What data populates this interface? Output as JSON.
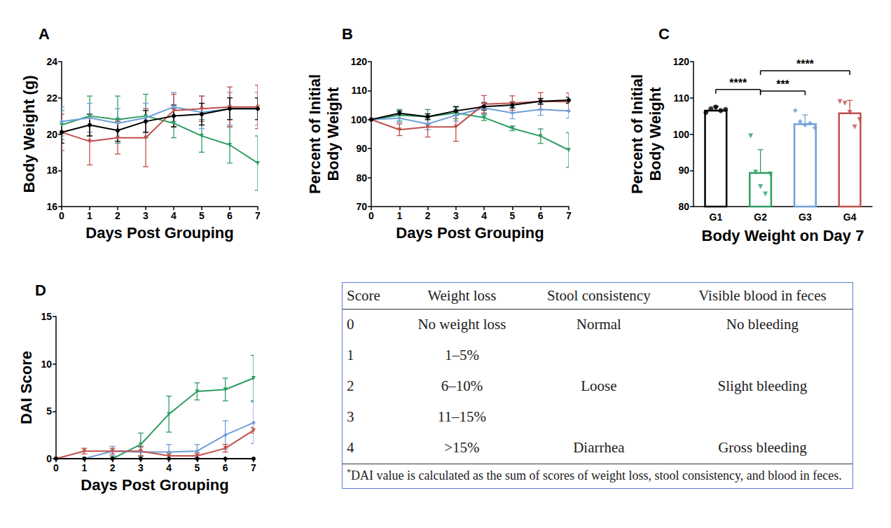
{
  "chart_data": [
    {
      "type": "line",
      "title": "A",
      "xlabel": "Days Post Grouping",
      "ylabel": "Body Weight (g)",
      "x": [
        0,
        1,
        2,
        3,
        4,
        5,
        6,
        7
      ],
      "xlim": [
        0,
        7
      ],
      "xticks": [
        0,
        1,
        2,
        3,
        4,
        5,
        6,
        7
      ],
      "ylim": [
        16,
        24
      ],
      "yticks": [
        16,
        18,
        20,
        22,
        24
      ],
      "series": [
        {
          "color": "#2e9e63",
          "marker": "triangle-down",
          "values": [
            20.5,
            21.0,
            20.8,
            21.0,
            20.6,
            19.9,
            19.4,
            18.4
          ],
          "errors": [
            0.8,
            1.1,
            1.3,
            1.2,
            0.8,
            0.9,
            1.0,
            1.5
          ]
        },
        {
          "color": "#6f9fd8",
          "marker": "diamond",
          "values": [
            20.7,
            20.9,
            20.6,
            20.9,
            21.5,
            21.2,
            21.4,
            21.4
          ],
          "errors": [
            0.8,
            0.8,
            0.8,
            0.8,
            0.8,
            0.9,
            0.9,
            0.9
          ]
        },
        {
          "color": "#c0504d",
          "marker": "triangle-down",
          "values": [
            20.1,
            19.6,
            19.8,
            19.8,
            21.3,
            21.4,
            21.5,
            21.5
          ],
          "errors": [
            1.0,
            1.3,
            0.9,
            1.6,
            0.9,
            0.7,
            1.1,
            1.2
          ]
        },
        {
          "color": "#000000",
          "marker": "circle",
          "values": [
            20.1,
            20.5,
            20.2,
            20.7,
            21.0,
            21.1,
            21.4,
            21.4
          ],
          "errors": [
            0.6,
            0.6,
            0.6,
            0.6,
            0.6,
            0.6,
            0.6,
            0.6
          ]
        }
      ]
    },
    {
      "type": "line",
      "title": "B",
      "xlabel": "Days Post Grouping",
      "ylabel": "Percent of Initial\nBody Weight",
      "x": [
        0,
        1,
        2,
        3,
        4,
        5,
        6,
        7
      ],
      "xlim": [
        0,
        7
      ],
      "xticks": [
        0,
        1,
        2,
        3,
        4,
        5,
        6,
        7
      ],
      "ylim": [
        70,
        120
      ],
      "yticks": [
        70,
        80,
        90,
        100,
        110,
        120
      ],
      "series": [
        {
          "color": "#2e9e63",
          "marker": "triangle-down",
          "values": [
            100,
            101.5,
            101,
            102.3,
            100.7,
            97,
            94.3,
            89.5
          ],
          "errors": [
            0,
            2,
            2.5,
            2,
            1,
            0.8,
            2.5,
            6
          ]
        },
        {
          "color": "#6f9fd8",
          "marker": "diamond",
          "values": [
            100,
            100.5,
            98.5,
            101.5,
            104,
            102.3,
            103.5,
            103
          ],
          "errors": [
            0,
            1.5,
            2,
            2,
            2,
            2,
            2,
            2.5
          ]
        },
        {
          "color": "#c0504d",
          "marker": "triangle-down",
          "values": [
            100,
            96.5,
            97.5,
            97.5,
            105.3,
            105.7,
            106.3,
            106.2
          ],
          "errors": [
            0,
            2,
            3.5,
            5,
            3,
            2.5,
            3,
            3
          ]
        },
        {
          "color": "#000000",
          "marker": "circle",
          "values": [
            100,
            102.2,
            101,
            103,
            104.5,
            105,
            106.3,
            106.7
          ],
          "errors": [
            0,
            0.8,
            1,
            1.5,
            1.2,
            1,
            1,
            1
          ]
        }
      ]
    },
    {
      "type": "bar",
      "title": "C",
      "xlabel": "Body Weight on Day 7",
      "ylabel": "Percent of Initial\nBody Weight",
      "categories": [
        "G1",
        "G2",
        "G3",
        "G4"
      ],
      "values": [
        106.7,
        89.5,
        103,
        106
      ],
      "errors": [
        1,
        6.2,
        2.3,
        3.3
      ],
      "colors": [
        "#000000",
        "#2e9e63",
        "#6f9fd8",
        "#c0504d"
      ],
      "points": [
        [
          106,
          107,
          107.5,
          106.5,
          106.8
        ],
        [
          99.5,
          89.5,
          85.5,
          83.5,
          89
        ],
        [
          106.5,
          103.5,
          102.5,
          103,
          101.8
        ],
        [
          109,
          108.5,
          106,
          102,
          104
        ]
      ],
      "ylim": [
        80,
        120
      ],
      "yticks": [
        80,
        90,
        100,
        110,
        120
      ],
      "annotations": [
        {
          "text": "****",
          "from": "G1",
          "to": "G2",
          "y": 112.3
        },
        {
          "text": "***",
          "from": "G2",
          "to": "G3",
          "y": 111.9
        },
        {
          "text": "****",
          "from": "G2",
          "to": "G4",
          "y": 117.5
        }
      ]
    },
    {
      "type": "line",
      "title": "D",
      "xlabel": "Days Post Grouping",
      "ylabel": "DAI Score",
      "x": [
        0,
        1,
        2,
        3,
        4,
        5,
        6,
        7
      ],
      "xlim": [
        0,
        7
      ],
      "xticks": [
        0,
        1,
        2,
        3,
        4,
        5,
        6,
        7
      ],
      "ylim": [
        0,
        15
      ],
      "yticks": [
        0,
        5,
        10,
        15
      ],
      "series": [
        {
          "color": "#2e9e63",
          "marker": "triangle-down",
          "values": [
            0,
            0,
            0,
            1.5,
            4.7,
            7.1,
            7.3,
            8.5
          ],
          "errors": [
            0,
            0,
            0.3,
            1.2,
            1.9,
            0.9,
            1.2,
            2.4
          ]
        },
        {
          "color": "#6f9fd8",
          "marker": "diamond",
          "values": [
            0,
            0,
            0.8,
            0.7,
            0.7,
            0.8,
            2.5,
            3.8
          ],
          "errors": [
            0,
            0,
            0.5,
            0.5,
            0.8,
            0.7,
            1.5,
            2.2
          ]
        },
        {
          "color": "#c0504d",
          "marker": "triangle-down",
          "values": [
            0,
            0.8,
            0.8,
            0.8,
            0.3,
            0.3,
            1.1,
            3.0
          ],
          "errors": [
            0,
            0.3,
            0.3,
            0.5,
            0.3,
            0.3,
            0.4,
            0.3
          ]
        },
        {
          "color": "#000000",
          "marker": "circle",
          "values": [
            0,
            0,
            0,
            0,
            0,
            0,
            0,
            0
          ],
          "errors": [
            0,
            0,
            0,
            0,
            0,
            0,
            0,
            0
          ]
        }
      ]
    }
  ],
  "table": {
    "header": [
      "Score",
      "Weight loss",
      "Stool consistency",
      "Visible blood in feces"
    ],
    "rows": [
      [
        0,
        "No weight loss",
        "Normal",
        "No bleeding"
      ],
      [
        1,
        "1–5%",
        null,
        null
      ],
      [
        2,
        "6–10%",
        "Loose",
        "Slight bleeding"
      ],
      [
        3,
        "11–15%",
        null,
        null
      ],
      [
        4,
        ">15%",
        "Diarrhea",
        "Gross bleeding"
      ]
    ],
    "footnote": {
      "marker": "*",
      "text": "DAI value is calculated as the sum of scores of weight loss, stool consistency, and blood in feces."
    }
  }
}
